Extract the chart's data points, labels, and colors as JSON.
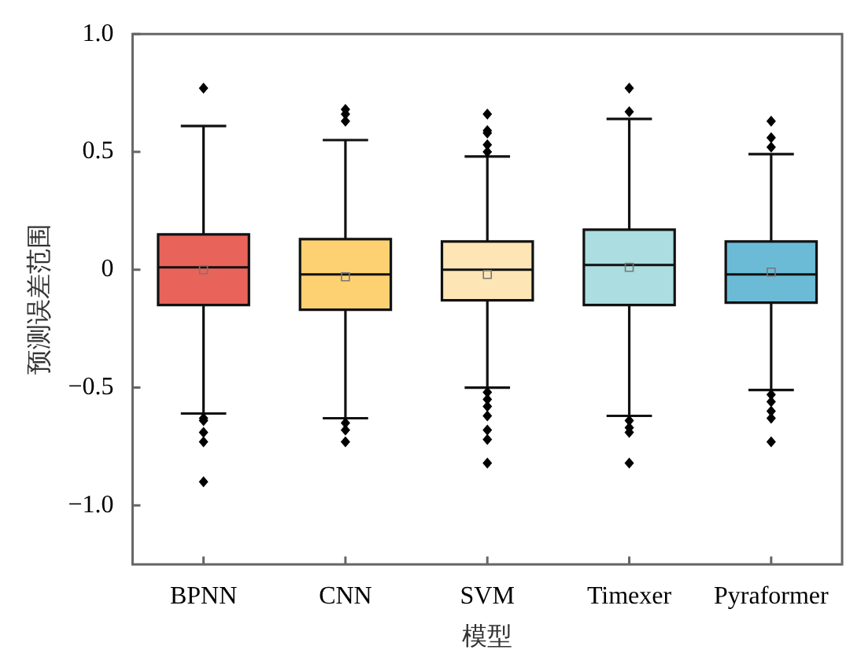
{
  "chart_data": {
    "type": "box",
    "xlabel": "模型",
    "ylabel": "预测误差范围",
    "categories": [
      "BPNN",
      "CNN",
      "SVM",
      "Timexer",
      "Pyraformer"
    ],
    "colors": [
      "#e8645a",
      "#fdd172",
      "#fde5b6",
      "#acdde0",
      "#6bbbd6"
    ],
    "boxes": [
      {
        "low": -0.61,
        "q1": -0.15,
        "median": 0.01,
        "q3": 0.15,
        "high": 0.61,
        "mean": 0.0,
        "outliers": [
          0.77,
          -0.63,
          -0.64,
          -0.69,
          -0.73,
          -0.9
        ]
      },
      {
        "low": -0.63,
        "q1": -0.17,
        "median": -0.02,
        "q3": 0.13,
        "high": 0.55,
        "mean": -0.03,
        "outliers": [
          0.68,
          0.66,
          0.63,
          -0.65,
          -0.68,
          -0.73
        ]
      },
      {
        "low": -0.5,
        "q1": -0.13,
        "median": 0.0,
        "q3": 0.12,
        "high": 0.48,
        "mean": -0.02,
        "outliers": [
          0.66,
          0.59,
          0.58,
          0.53,
          0.5,
          -0.52,
          -0.55,
          -0.58,
          -0.62,
          -0.68,
          -0.72,
          -0.82
        ]
      },
      {
        "low": -0.62,
        "q1": -0.15,
        "median": 0.02,
        "q3": 0.17,
        "high": 0.64,
        "mean": 0.01,
        "outliers": [
          0.77,
          0.67,
          -0.64,
          -0.67,
          -0.69,
          -0.82
        ]
      },
      {
        "low": -0.51,
        "q1": -0.14,
        "median": -0.02,
        "q3": 0.12,
        "high": 0.49,
        "mean": -0.01,
        "outliers": [
          0.63,
          0.56,
          0.52,
          -0.53,
          -0.56,
          -0.6,
          -0.63,
          -0.73
        ]
      }
    ],
    "ylim": [
      -1.25,
      1.0
    ],
    "yticks": [
      {
        "value": 1.0,
        "label": "1.0"
      },
      {
        "value": 0.5,
        "label": "0.5"
      },
      0,
      {
        "value": -0.5,
        "label": "−0.5"
      },
      {
        "value": -1.0,
        "label": "−1.0"
      }
    ],
    "grid": false,
    "legend": false
  }
}
